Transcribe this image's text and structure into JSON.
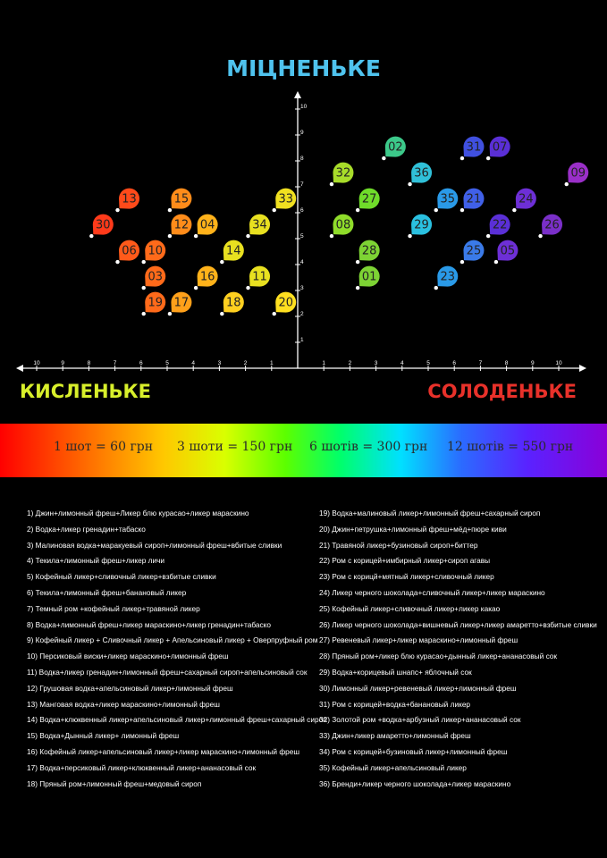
{
  "chart_data": {
    "type": "scatter",
    "title": "МІЦНЕНЬКЕ",
    "xlabel_left": "КИСЛЕНЬКЕ",
    "xlabel_right": "СОЛОДЕНЬКЕ",
    "xlim": [
      -10,
      10
    ],
    "ylim": [
      0,
      10
    ],
    "x_ticks": [
      "10",
      "9",
      "8",
      "7",
      "6",
      "5",
      "4",
      "3",
      "2",
      "1",
      "1",
      "2",
      "3",
      "4",
      "5",
      "6",
      "7",
      "8",
      "9",
      "10"
    ],
    "y_ticks": [
      "1",
      "2",
      "3",
      "4",
      "5",
      "6",
      "7",
      "8",
      "9",
      "10"
    ],
    "grid": false,
    "points": [
      {
        "label": "01",
        "x": 2.3,
        "y": 3.1,
        "color": "#7dd334"
      },
      {
        "label": "02",
        "x": 3.3,
        "y": 8.1,
        "color": "#3cc98a"
      },
      {
        "label": "03",
        "x": -5.9,
        "y": 3.1,
        "color": "#ff6a1a"
      },
      {
        "label": "04",
        "x": -3.9,
        "y": 5.1,
        "color": "#ffb21a"
      },
      {
        "label": "05",
        "x": 7.6,
        "y": 4.1,
        "color": "#6d2fd6"
      },
      {
        "label": "06",
        "x": -6.9,
        "y": 4.1,
        "color": "#ff5a1a"
      },
      {
        "label": "07",
        "x": 7.3,
        "y": 8.1,
        "color": "#5a2fd6"
      },
      {
        "label": "08",
        "x": 1.3,
        "y": 5.1,
        "color": "#8fdc2a"
      },
      {
        "label": "09",
        "x": 10.3,
        "y": 7.1,
        "color": "#9a2fc8"
      },
      {
        "label": "10",
        "x": -5.9,
        "y": 4.1,
        "color": "#ff6a1a"
      },
      {
        "label": "11",
        "x": -1.9,
        "y": 3.1,
        "color": "#e8e020"
      },
      {
        "label": "12",
        "x": -4.9,
        "y": 5.1,
        "color": "#ff8c1a"
      },
      {
        "label": "13",
        "x": -6.9,
        "y": 6.1,
        "color": "#ff4a1a"
      },
      {
        "label": "14",
        "x": -2.9,
        "y": 4.1,
        "color": "#e8e020"
      },
      {
        "label": "15",
        "x": -4.9,
        "y": 6.1,
        "color": "#ff8c1a"
      },
      {
        "label": "16",
        "x": -3.9,
        "y": 3.1,
        "color": "#ffb21a"
      },
      {
        "label": "17",
        "x": -4.9,
        "y": 2.1,
        "color": "#ffa01a"
      },
      {
        "label": "18",
        "x": -2.9,
        "y": 2.1,
        "color": "#ffd020"
      },
      {
        "label": "19",
        "x": -5.9,
        "y": 2.1,
        "color": "#ff6a1a"
      },
      {
        "label": "20",
        "x": -0.9,
        "y": 2.1,
        "color": "#ffe020"
      },
      {
        "label": "21",
        "x": 6.3,
        "y": 6.1,
        "color": "#4060e8"
      },
      {
        "label": "22",
        "x": 7.3,
        "y": 5.1,
        "color": "#5a2fd6"
      },
      {
        "label": "23",
        "x": 5.3,
        "y": 3.1,
        "color": "#2a9ae8"
      },
      {
        "label": "24",
        "x": 8.3,
        "y": 6.1,
        "color": "#6d2fd6"
      },
      {
        "label": "25",
        "x": 6.3,
        "y": 4.1,
        "color": "#3a7ae8"
      },
      {
        "label": "26",
        "x": 9.3,
        "y": 5.1,
        "color": "#7a2fc8"
      },
      {
        "label": "27",
        "x": 2.3,
        "y": 6.1,
        "color": "#6fdc2a"
      },
      {
        "label": "28",
        "x": 2.3,
        "y": 4.1,
        "color": "#7dd334"
      },
      {
        "label": "29",
        "x": 4.3,
        "y": 5.1,
        "color": "#2ac0e0"
      },
      {
        "label": "30",
        "x": -7.9,
        "y": 5.1,
        "color": "#ff3a1a"
      },
      {
        "label": "31",
        "x": 6.3,
        "y": 8.1,
        "color": "#4050e0"
      },
      {
        "label": "32",
        "x": 1.3,
        "y": 7.1,
        "color": "#a8dc2a"
      },
      {
        "label": "33",
        "x": -0.9,
        "y": 6.1,
        "color": "#f0e020"
      },
      {
        "label": "34",
        "x": -1.9,
        "y": 5.1,
        "color": "#e8e020"
      },
      {
        "label": "35",
        "x": 5.3,
        "y": 6.1,
        "color": "#2a9ae8"
      },
      {
        "label": "36",
        "x": 4.3,
        "y": 7.1,
        "color": "#30c0d8"
      }
    ]
  },
  "prices": [
    {
      "text": "1 шот   = 60 грн"
    },
    {
      "text": "3 шоти = 150 грн"
    },
    {
      "text": "6 шотів = 300 грн"
    },
    {
      "text": "12 шотів = 550 грн"
    }
  ],
  "recipes_left": [
    "1) Джин+лимонный фреш+Ликер блю курасао+ликер мараскино",
    "2) Водка+ликер гренадин+табаско",
    "3) Малиновая водка+маракуевый сироп+лимонный фреш+вбитые сливки",
    "4) Текила+лимонный фреш+ликер личи",
    "5) Кофейный ликер+сливочный ликер+взбитые сливки",
    "6) Текила+лимонный фреш+банановый ликер",
    "7) Темный ром +кофейный ликер+травяной ликер",
    "8) Водка+лимонный фреш+ликер мараскино+ликер гренадин+табаско",
    "9) Кофейный ликер + Сливочный ликер + Апельсиновый ликер + Оверпруфный ром",
    "10)    Персиковый виски+ликер мараскино+лимонный фреш",
    "11)    Водка+ликер гренадин+лимонный фреш+сахарный сироп+апельсиновый сок",
    "12)    Грушовая водка+апельсиновый ликер+лимонный фреш",
    "13)    Манговая водка+ликер мараскино+лимонный фреш",
    "14)    Водка+клюквенный ликер+апельсиновый ликер+лимонный фреш+сахарный сироп",
    "15)    Водка+Дынный ликер+ лимонный фреш",
    "16)    Кофейный ликер+апельсиновый ликер+ликер мараскино+лимонный фреш",
    "17)    Водка+персиковый ликер+клюквенный ликер+ананасовый сок",
    "18)    Пряный ром+лимонный фреш+медовый сироп"
  ],
  "recipes_right": [
    "19)    Водка+малиновый ликер+лимонный фреш+сахарный сироп",
    "20)    Джин+петрушка+лимонный фреш+мёд+пюре киви",
    "21)    Травяной ликер+бузиновый сироп+биттер",
    "22)    Ром с корицей+имбирный ликер+сироп агавы",
    "23)    Ром с корицй+мятный ликер+сливочный ликер",
    "24)    Ликер черного шоколада+сливочный ликер+ликер мараскино",
    "25)    Кофейный ликер+сливочный ликер+ликер какао",
    "26)    Ликер черного шоколада+вишневый ликер+ликер амаретто+взбитые сливки",
    "27)    Ревеневый ликер+ликер мараскино+лимонный фреш",
    "28)    Пряный ром+ликер блю курасао+дынный ликер+ананасовый сок",
    "29)    Водка+корицевый шнапс+ яблочный сок",
    "30)    Лимонный ликер+ревеневый ликер+лимонный фреш",
    "31)    Ром с корицей+водка+банановый ликер",
    "32)    Золотой ром +водка+арбузный ликер+ананасовый сок",
    "33)    Джин+ликер амаретто+лимонный фреш",
    "34)    Ром с корицей+бузиновый ликер+лимонный фреш",
    "35)    Кофейный ликер+апельсиновый ликер",
    "36)    Бренди+ликер черного шоколада+ликер мараскино"
  ]
}
